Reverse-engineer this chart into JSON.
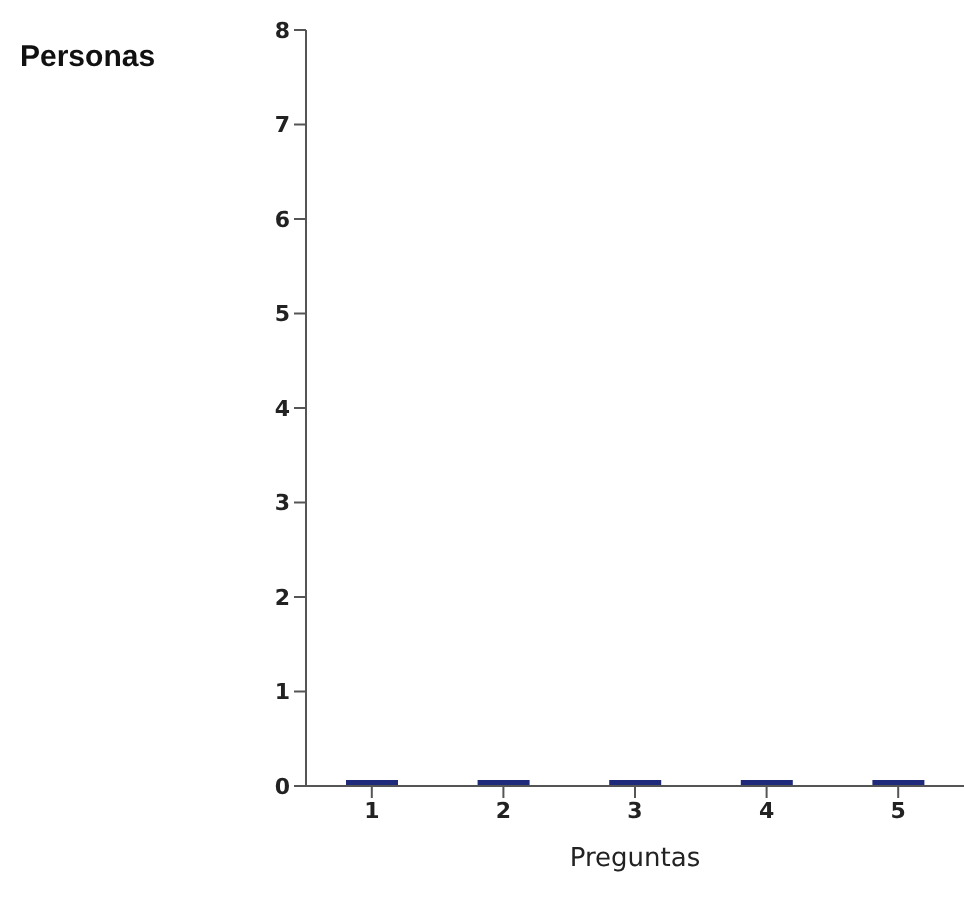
{
  "chart_data": {
    "type": "bar",
    "xlabel": "Preguntas",
    "ylabel": "Personas",
    "categories": [
      "1",
      "2",
      "3",
      "4",
      "5"
    ],
    "values": [
      0,
      0,
      0,
      0,
      0
    ],
    "color": "#1f2a7a",
    "ylim": [
      0,
      8
    ],
    "yticks": [
      0,
      1,
      2,
      3,
      4,
      5,
      6,
      7,
      8
    ],
    "grid": false
  }
}
